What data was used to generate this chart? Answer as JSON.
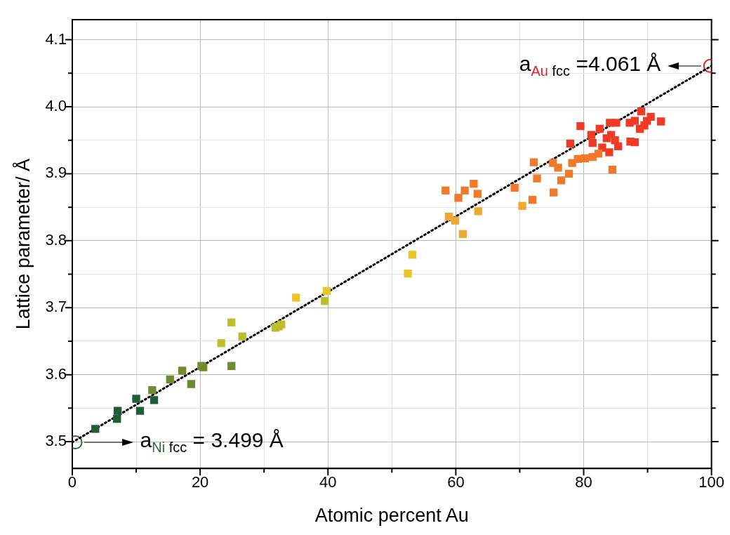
{
  "chart_data": {
    "type": "scatter",
    "xlabel": "Atomic percent Au",
    "ylabel": "Lattice parameter/ Å",
    "xlim": [
      0,
      100
    ],
    "ylim": [
      3.46,
      4.13
    ],
    "xticks": [
      0,
      {
        "value": 10,
        "label": null
      },
      20,
      {
        "value": 30,
        "label": null
      },
      40,
      {
        "value": 50,
        "label": null
      },
      60,
      {
        "value": 70,
        "label": null
      },
      80,
      {
        "value": 90,
        "label": null
      },
      100
    ],
    "yticks": [
      3.5,
      {
        "value": 3.55,
        "label": null
      },
      3.6,
      {
        "value": 3.65,
        "label": null
      },
      3.7,
      {
        "value": 3.75,
        "label": null
      },
      3.8,
      {
        "value": 3.85,
        "label": null
      },
      3.9,
      {
        "value": 3.95,
        "label": null
      },
      "4.0",
      {
        "value": 4.05,
        "label": null
      },
      4.1
    ],
    "grid": true,
    "legend": false,
    "marker": "square",
    "series": [
      {
        "color": "#1f5e34",
        "x": [
          3.6,
          7.1,
          7.0,
          10.0,
          10.6,
          12.8
        ],
        "values": [
          3.519,
          3.546,
          3.534,
          3.564,
          3.546,
          3.562
        ]
      },
      {
        "color": "#6e8c2e",
        "x": [
          12.5,
          15.3,
          17.2,
          18.6,
          20.2,
          20.5,
          24.9
        ],
        "values": [
          3.577,
          3.593,
          3.606,
          3.586,
          3.613,
          3.611,
          3.613
        ]
      },
      {
        "color": "#bcbf2c",
        "x": [
          23.3,
          24.9,
          26.6,
          31.8,
          32.3,
          32.7,
          39.5
        ],
        "values": [
          3.647,
          3.678,
          3.657,
          3.67,
          3.672,
          3.675,
          3.71
        ]
      },
      {
        "color": "#ebc42a",
        "x": [
          35.0,
          39.8,
          52.5,
          53.2
        ],
        "values": [
          3.715,
          3.725,
          3.751,
          3.779
        ]
      },
      {
        "color": "#eeaa2e",
        "x": [
          58.9,
          59.9,
          61.1,
          63.5,
          70.4
        ],
        "values": [
          3.836,
          3.83,
          3.81,
          3.844,
          3.852
        ]
      },
      {
        "color": "#f07a2a",
        "x": [
          58.4,
          60.4,
          61.4,
          62.8,
          63.4,
          69.2,
          72.0,
          72.7,
          72.2,
          75.3,
          76.5,
          75.2,
          76.0,
          77.7,
          78.2,
          79.1,
          80.2,
          81.4,
          82.3,
          84.5
        ],
        "values": [
          3.875,
          3.864,
          3.875,
          3.885,
          3.87,
          3.879,
          3.861,
          3.893,
          3.917,
          3.872,
          3.89,
          3.916,
          3.909,
          3.9,
          3.916,
          3.922,
          3.923,
          3.925,
          3.93,
          3.906
        ]
      },
      {
        "color": "#f03a26",
        "x": [
          77.9,
          79.5,
          81.2,
          81.4,
          82.9,
          82.5,
          84.1,
          85.1,
          84.0,
          84.3,
          84.9,
          85.4,
          83.6,
          87.3,
          88.0,
          87.2,
          88.0,
          89.0,
          88.8,
          89.5,
          90.5,
          92.1,
          89.9
        ],
        "values": [
          3.945,
          3.971,
          3.958,
          3.946,
          3.939,
          3.967,
          3.976,
          3.976,
          3.932,
          3.958,
          3.95,
          3.941,
          3.953,
          3.948,
          3.947,
          3.976,
          3.979,
          3.993,
          3.967,
          3.972,
          3.985,
          3.978,
          3.979
        ]
      },
      {
        "type": "line",
        "color": "#000000",
        "line_style": "dotted",
        "marker": "none",
        "x": [
          0,
          100
        ],
        "values": [
          3.499,
          4.061
        ]
      },
      {
        "color": "#2e6b36",
        "marker": "circle",
        "x": [
          0.5
        ],
        "values": [
          3.499
        ]
      },
      {
        "color": "#e8202a",
        "marker": "circle",
        "x": [
          99.8
        ],
        "values": [
          4.061
        ]
      }
    ],
    "annotations": [
      "a$_{Ni}$$_{ fcc}$ = 3.499 Å",
      {
        "text": "a$_{Au}$$_{ fcc}$ =4.061 Å",
        "x": 99.8,
        "y": 4.061
      }
    ]
  }
}
